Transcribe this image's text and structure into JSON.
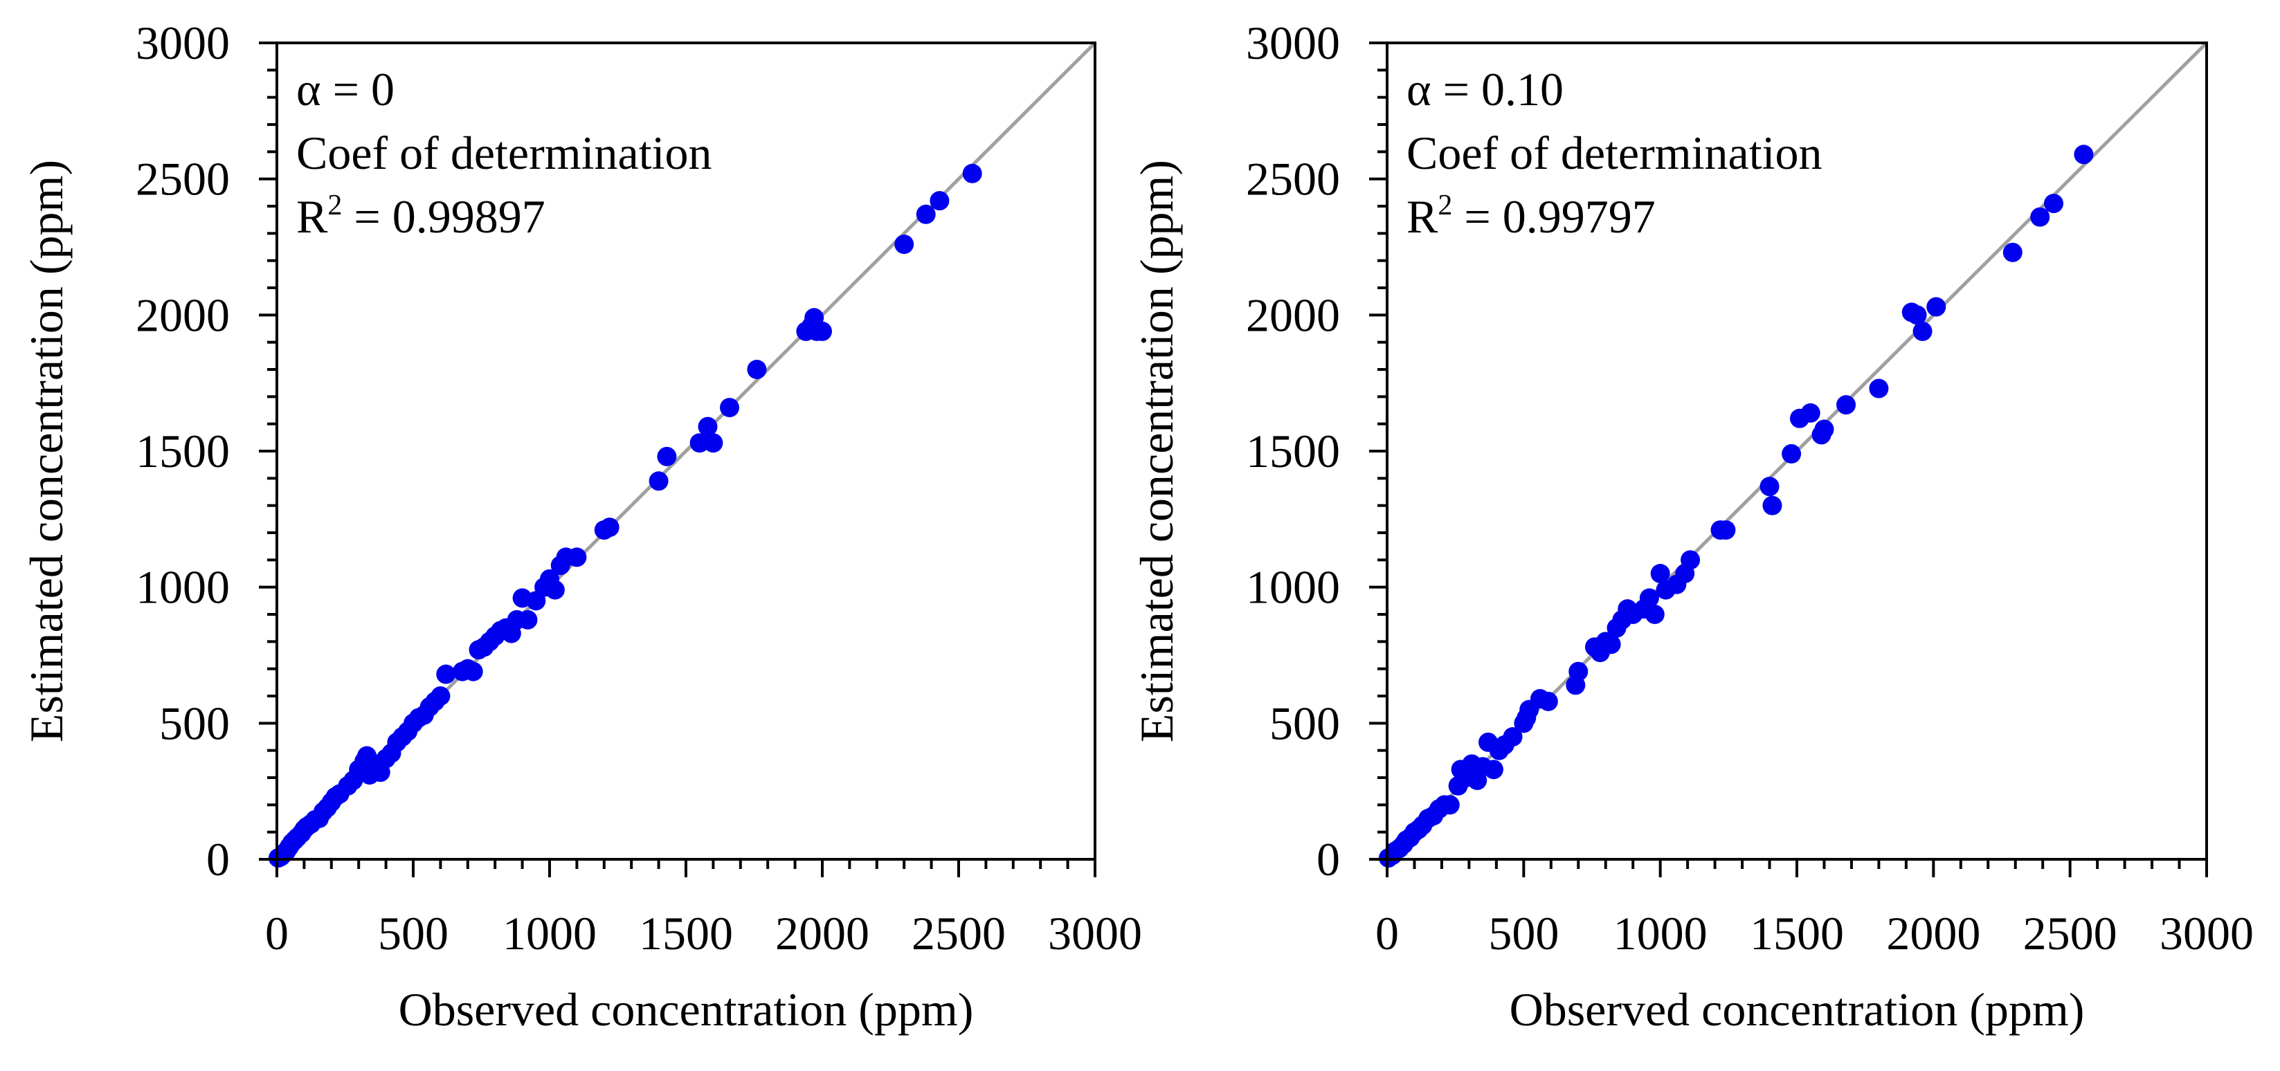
{
  "chart_data": [
    {
      "type": "scatter",
      "xlabel": "Observed concentration (ppm)",
      "ylabel": "Estimated concentration (ppm)",
      "xlim": [
        0,
        3000
      ],
      "ylim": [
        0,
        3000
      ],
      "xticks": [
        "0",
        "500",
        "1000",
        "1500",
        "2000",
        "2500",
        "3000"
      ],
      "yticks": [
        "0",
        "500",
        "1000",
        "1500",
        "2000",
        "2500",
        "3000"
      ],
      "grid": false,
      "reference_line": {
        "from": [
          0,
          0
        ],
        "to": [
          3000,
          3000
        ],
        "color": "#a0a0a0"
      },
      "annotation": {
        "alpha_label": "α = 0",
        "line2": "Coef of determination",
        "r2_prefix": "R",
        "r2_sup": "2",
        "r2_value": " = 0.99897"
      },
      "marker_color": "#0000ee",
      "points": [
        [
          5,
          5
        ],
        [
          15,
          10
        ],
        [
          25,
          20
        ],
        [
          35,
          30
        ],
        [
          45,
          45
        ],
        [
          55,
          60
        ],
        [
          65,
          70
        ],
        [
          75,
          80
        ],
        [
          90,
          95
        ],
        [
          100,
          110
        ],
        [
          110,
          120
        ],
        [
          125,
          130
        ],
        [
          140,
          145
        ],
        [
          155,
          150
        ],
        [
          170,
          175
        ],
        [
          185,
          190
        ],
        [
          200,
          210
        ],
        [
          215,
          230
        ],
        [
          230,
          240
        ],
        [
          260,
          270
        ],
        [
          280,
          290
        ],
        [
          300,
          330
        ],
        [
          320,
          360
        ],
        [
          330,
          380
        ],
        [
          340,
          310
        ],
        [
          360,
          350
        ],
        [
          380,
          320
        ],
        [
          400,
          370
        ],
        [
          420,
          390
        ],
        [
          440,
          430
        ],
        [
          460,
          450
        ],
        [
          480,
          470
        ],
        [
          500,
          500
        ],
        [
          520,
          520
        ],
        [
          540,
          530
        ],
        [
          560,
          560
        ],
        [
          580,
          580
        ],
        [
          600,
          600
        ],
        [
          620,
          680
        ],
        [
          680,
          690
        ],
        [
          700,
          700
        ],
        [
          720,
          690
        ],
        [
          740,
          770
        ],
        [
          760,
          780
        ],
        [
          780,
          800
        ],
        [
          800,
          820
        ],
        [
          820,
          840
        ],
        [
          840,
          850
        ],
        [
          860,
          830
        ],
        [
          880,
          880
        ],
        [
          900,
          960
        ],
        [
          920,
          880
        ],
        [
          950,
          950
        ],
        [
          980,
          1000
        ],
        [
          1000,
          1030
        ],
        [
          1020,
          990
        ],
        [
          1040,
          1080
        ],
        [
          1060,
          1110
        ],
        [
          1100,
          1110
        ],
        [
          1200,
          1210
        ],
        [
          1220,
          1220
        ],
        [
          1400,
          1390
        ],
        [
          1430,
          1480
        ],
        [
          1550,
          1530
        ],
        [
          1580,
          1590
        ],
        [
          1600,
          1530
        ],
        [
          1660,
          1660
        ],
        [
          1760,
          1800
        ],
        [
          1940,
          1940
        ],
        [
          1960,
          1960
        ],
        [
          1970,
          1990
        ],
        [
          1980,
          1940
        ],
        [
          2000,
          1940
        ],
        [
          2300,
          2260
        ],
        [
          2380,
          2370
        ],
        [
          2430,
          2420
        ],
        [
          2550,
          2520
        ]
      ]
    },
    {
      "type": "scatter",
      "xlabel": "Observed concentration (ppm)",
      "ylabel": "Estimated concentration (ppm)",
      "xlim": [
        0,
        3000
      ],
      "ylim": [
        0,
        3000
      ],
      "xticks": [
        "0",
        "500",
        "1000",
        "1500",
        "2000",
        "2500",
        "3000"
      ],
      "yticks": [
        "0",
        "500",
        "1000",
        "1500",
        "2000",
        "2500",
        "3000"
      ],
      "grid": false,
      "reference_line": {
        "from": [
          0,
          0
        ],
        "to": [
          3000,
          3000
        ],
        "color": "#a0a0a0"
      },
      "annotation": {
        "alpha_label": "α = 0.10",
        "line2": "Coef of determination",
        "r2_prefix": "R",
        "r2_sup": "2",
        "r2_value": " = 0.99797"
      },
      "marker_color": "#0000ee",
      "points": [
        [
          5,
          5
        ],
        [
          20,
          15
        ],
        [
          30,
          30
        ],
        [
          45,
          40
        ],
        [
          60,
          55
        ],
        [
          70,
          70
        ],
        [
          85,
          80
        ],
        [
          100,
          100
        ],
        [
          115,
          110
        ],
        [
          130,
          125
        ],
        [
          150,
          150
        ],
        [
          170,
          160
        ],
        [
          190,
          185
        ],
        [
          210,
          200
        ],
        [
          230,
          200
        ],
        [
          260,
          270
        ],
        [
          270,
          330
        ],
        [
          290,
          300
        ],
        [
          310,
          350
        ],
        [
          330,
          290
        ],
        [
          350,
          340
        ],
        [
          370,
          430
        ],
        [
          390,
          330
        ],
        [
          410,
          400
        ],
        [
          430,
          420
        ],
        [
          460,
          450
        ],
        [
          500,
          500
        ],
        [
          510,
          520
        ],
        [
          520,
          550
        ],
        [
          560,
          590
        ],
        [
          590,
          580
        ],
        [
          690,
          640
        ],
        [
          700,
          690
        ],
        [
          760,
          780
        ],
        [
          780,
          760
        ],
        [
          800,
          800
        ],
        [
          820,
          790
        ],
        [
          840,
          850
        ],
        [
          860,
          880
        ],
        [
          880,
          920
        ],
        [
          900,
          900
        ],
        [
          940,
          920
        ],
        [
          960,
          960
        ],
        [
          980,
          900
        ],
        [
          1000,
          1050
        ],
        [
          1020,
          990
        ],
        [
          1060,
          1010
        ],
        [
          1090,
          1050
        ],
        [
          1110,
          1100
        ],
        [
          1220,
          1210
        ],
        [
          1240,
          1210
        ],
        [
          1400,
          1370
        ],
        [
          1410,
          1300
        ],
        [
          1480,
          1490
        ],
        [
          1510,
          1620
        ],
        [
          1550,
          1640
        ],
        [
          1590,
          1560
        ],
        [
          1600,
          1580
        ],
        [
          1680,
          1670
        ],
        [
          1800,
          1730
        ],
        [
          1920,
          2010
        ],
        [
          1940,
          2000
        ],
        [
          1960,
          1940
        ],
        [
          2010,
          2030
        ],
        [
          2290,
          2230
        ],
        [
          2390,
          2360
        ],
        [
          2440,
          2410
        ],
        [
          2550,
          2590
        ]
      ]
    }
  ]
}
